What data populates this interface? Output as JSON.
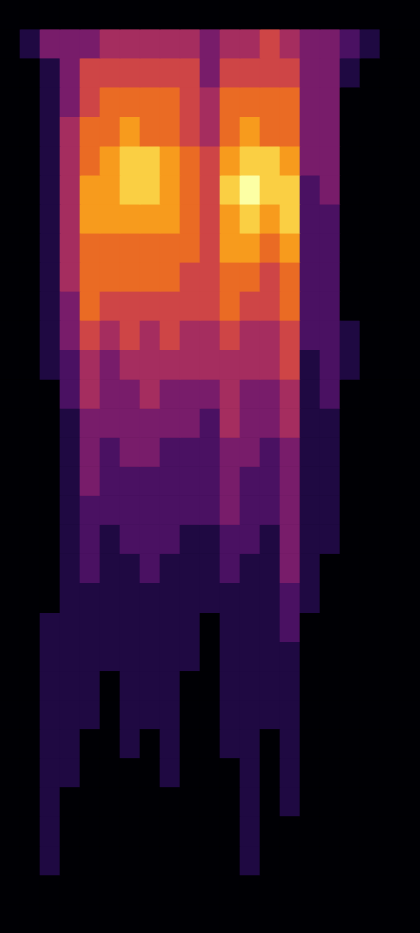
{
  "chart_data": {
    "type": "heatmap",
    "tick_labels": false,
    "cells": [
      [
        0,
        0,
        0,
        0,
        0,
        0,
        0,
        0,
        0,
        0,
        0,
        0,
        0,
        0,
        0,
        0,
        0,
        0,
        0,
        0,
        0
      ],
      [
        0,
        1,
        3,
        3,
        3,
        4,
        4,
        4,
        4,
        4,
        3,
        4,
        4,
        5,
        4,
        3,
        3,
        2,
        1,
        0,
        0
      ],
      [
        0,
        0,
        1,
        3,
        5,
        5,
        5,
        5,
        5,
        5,
        3,
        5,
        5,
        5,
        5,
        3,
        3,
        1,
        0,
        0,
        0
      ],
      [
        0,
        0,
        1,
        3,
        5,
        6,
        6,
        6,
        6,
        5,
        4,
        6,
        6,
        6,
        6,
        3,
        3,
        0,
        0,
        0,
        0
      ],
      [
        0,
        0,
        1,
        4,
        6,
        6,
        7,
        6,
        6,
        5,
        4,
        6,
        7,
        6,
        6,
        3,
        3,
        0,
        0,
        0,
        0
      ],
      [
        0,
        0,
        1,
        4,
        6,
        7,
        8,
        8,
        7,
        6,
        5,
        7,
        8,
        8,
        7,
        3,
        3,
        0,
        0,
        0,
        0
      ],
      [
        0,
        0,
        1,
        4,
        7,
        7,
        8,
        8,
        7,
        6,
        5,
        8,
        9,
        8,
        8,
        2,
        3,
        0,
        0,
        0,
        0
      ],
      [
        0,
        0,
        1,
        4,
        7,
        7,
        7,
        7,
        7,
        6,
        5,
        7,
        8,
        7,
        8,
        2,
        2,
        0,
        0,
        0,
        0
      ],
      [
        0,
        0,
        1,
        4,
        6,
        6,
        6,
        6,
        6,
        6,
        5,
        7,
        7,
        6,
        7,
        2,
        2,
        0,
        0,
        0,
        0
      ],
      [
        0,
        0,
        1,
        4,
        6,
        6,
        6,
        6,
        6,
        5,
        5,
        6,
        6,
        5,
        6,
        2,
        2,
        0,
        0,
        0,
        0
      ],
      [
        0,
        0,
        1,
        3,
        6,
        5,
        5,
        5,
        5,
        5,
        5,
        6,
        5,
        5,
        6,
        2,
        2,
        0,
        0,
        0,
        0
      ],
      [
        0,
        0,
        1,
        3,
        5,
        4,
        5,
        4,
        5,
        4,
        4,
        5,
        4,
        4,
        5,
        2,
        2,
        1,
        0,
        0,
        0
      ],
      [
        0,
        0,
        1,
        2,
        4,
        3,
        4,
        4,
        4,
        4,
        4,
        4,
        4,
        4,
        5,
        1,
        2,
        1,
        0,
        0,
        0
      ],
      [
        0,
        0,
        0,
        2,
        4,
        3,
        3,
        4,
        3,
        3,
        3,
        4,
        3,
        3,
        4,
        1,
        2,
        0,
        0,
        0,
        0
      ],
      [
        0,
        0,
        0,
        1,
        3,
        3,
        3,
        3,
        3,
        3,
        2,
        4,
        3,
        3,
        4,
        1,
        1,
        0,
        0,
        0,
        0
      ],
      [
        0,
        0,
        0,
        1,
        3,
        2,
        3,
        3,
        2,
        2,
        2,
        3,
        3,
        2,
        3,
        1,
        1,
        0,
        0,
        0,
        0
      ],
      [
        0,
        0,
        0,
        1,
        3,
        2,
        2,
        2,
        2,
        2,
        2,
        3,
        2,
        2,
        3,
        1,
        1,
        0,
        0,
        0,
        0
      ],
      [
        0,
        0,
        0,
        1,
        2,
        2,
        2,
        2,
        2,
        2,
        2,
        3,
        2,
        2,
        3,
        1,
        1,
        0,
        0,
        0,
        0
      ],
      [
        0,
        0,
        0,
        1,
        2,
        1,
        2,
        2,
        2,
        1,
        1,
        2,
        2,
        1,
        3,
        1,
        1,
        0,
        0,
        0,
        0
      ],
      [
        0,
        0,
        0,
        1,
        2,
        1,
        1,
        2,
        1,
        1,
        1,
        2,
        1,
        1,
        3,
        1,
        0,
        0,
        0,
        0,
        0
      ],
      [
        0,
        0,
        0,
        1,
        1,
        1,
        1,
        1,
        1,
        1,
        1,
        1,
        1,
        1,
        2,
        1,
        0,
        0,
        0,
        0,
        0
      ],
      [
        0,
        0,
        1,
        1,
        1,
        1,
        1,
        1,
        1,
        1,
        0,
        1,
        1,
        1,
        2,
        0,
        0,
        0,
        0,
        0,
        0
      ],
      [
        0,
        0,
        1,
        1,
        1,
        1,
        1,
        1,
        1,
        1,
        0,
        1,
        1,
        1,
        1,
        0,
        0,
        0,
        0,
        0,
        0
      ],
      [
        0,
        0,
        1,
        1,
        1,
        0,
        1,
        1,
        1,
        0,
        0,
        1,
        1,
        1,
        1,
        0,
        0,
        0,
        0,
        0,
        0
      ],
      [
        0,
        0,
        1,
        1,
        1,
        0,
        1,
        1,
        1,
        0,
        0,
        1,
        1,
        1,
        1,
        0,
        0,
        0,
        0,
        0,
        0
      ],
      [
        0,
        0,
        1,
        1,
        0,
        0,
        1,
        0,
        1,
        0,
        0,
        1,
        1,
        0,
        1,
        0,
        0,
        0,
        0,
        0,
        0
      ],
      [
        0,
        0,
        1,
        1,
        0,
        0,
        0,
        0,
        1,
        0,
        0,
        0,
        1,
        0,
        1,
        0,
        0,
        0,
        0,
        0,
        0
      ],
      [
        0,
        0,
        1,
        0,
        0,
        0,
        0,
        0,
        0,
        0,
        0,
        0,
        1,
        0,
        1,
        0,
        0,
        0,
        0,
        0,
        0
      ],
      [
        0,
        0,
        1,
        0,
        0,
        0,
        0,
        0,
        0,
        0,
        0,
        0,
        1,
        0,
        0,
        0,
        0,
        0,
        0,
        0,
        0
      ],
      [
        0,
        0,
        1,
        0,
        0,
        0,
        0,
        0,
        0,
        0,
        0,
        0,
        1,
        0,
        0,
        0,
        0,
        0,
        0,
        0,
        0
      ],
      [
        0,
        0,
        0,
        0,
        0,
        0,
        0,
        0,
        0,
        0,
        0,
        0,
        0,
        0,
        0,
        0,
        0,
        0,
        0,
        0,
        0
      ],
      [
        0,
        0,
        0,
        0,
        0,
        0,
        0,
        0,
        0,
        0,
        0,
        0,
        0,
        0,
        0,
        0,
        0,
        0,
        0,
        0,
        0
      ]
    ]
  }
}
